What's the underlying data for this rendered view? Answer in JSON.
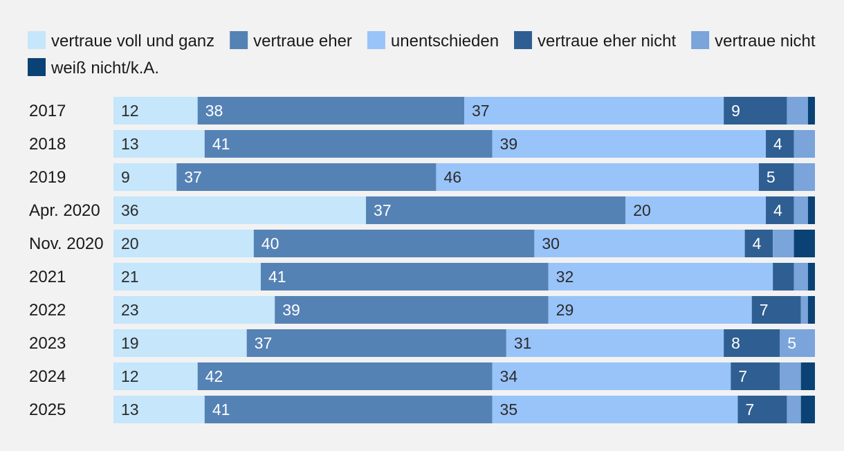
{
  "chart_data": {
    "type": "bar",
    "orientation": "horizontal",
    "stacked": true,
    "normalized": true,
    "categories": [
      "2017",
      "2018",
      "2019",
      "Apr. 2020",
      "Nov. 2020",
      "2021",
      "2022",
      "2023",
      "2024",
      "2025"
    ],
    "series": [
      {
        "name": "vertraue voll und ganz",
        "color": "#c5e6fb",
        "label_color": "#2b2b2b",
        "values": [
          12,
          13,
          9,
          36,
          20,
          21,
          23,
          19,
          12,
          13
        ],
        "labels": [
          "12",
          "13",
          "9",
          "36",
          "20",
          "21",
          "23",
          "19",
          "12",
          "13"
        ]
      },
      {
        "name": "vertraue eher",
        "color": "#5582b5",
        "label_color": "#ffffff",
        "values": [
          38,
          41,
          37,
          37,
          40,
          41,
          39,
          37,
          42,
          41
        ],
        "labels": [
          "38",
          "41",
          "37",
          "37",
          "40",
          "41",
          "39",
          "37",
          "42",
          "41"
        ]
      },
      {
        "name": "unentschieden",
        "color": "#99c4f9",
        "label_color": "#2b2b2b",
        "values": [
          37,
          39,
          46,
          20,
          30,
          32,
          29,
          31,
          34,
          35
        ],
        "labels": [
          "37",
          "39",
          "46",
          "20",
          "30",
          "32",
          "29",
          "31",
          "34",
          "35"
        ]
      },
      {
        "name": "vertraue eher nicht",
        "color": "#2f5f92",
        "label_color": "#ffffff",
        "values": [
          9,
          4,
          5,
          4,
          4,
          3,
          7,
          8,
          7,
          7
        ],
        "labels": [
          "9",
          "4",
          "5",
          "4",
          "4",
          "",
          "7",
          "8",
          "7",
          "7"
        ]
      },
      {
        "name": "vertraue nicht",
        "color": "#7aa4da",
        "label_color": "#ffffff",
        "values": [
          3,
          3,
          3,
          2,
          3,
          2,
          1,
          5,
          3,
          2
        ],
        "labels": [
          "",
          "",
          "",
          "",
          "",
          "",
          "",
          "5",
          "",
          ""
        ]
      },
      {
        "name": "weiß nicht/k.A.",
        "color": "#0a4275",
        "label_color": "#ffffff",
        "values": [
          1,
          0,
          0,
          1,
          3,
          1,
          1,
          0,
          2,
          2
        ],
        "labels": [
          "",
          "",
          "",
          "",
          "",
          "",
          "",
          "",
          "",
          ""
        ]
      }
    ],
    "xlim": [
      0,
      100
    ],
    "grid": false,
    "legend_position": "top-left",
    "unit": "%"
  }
}
